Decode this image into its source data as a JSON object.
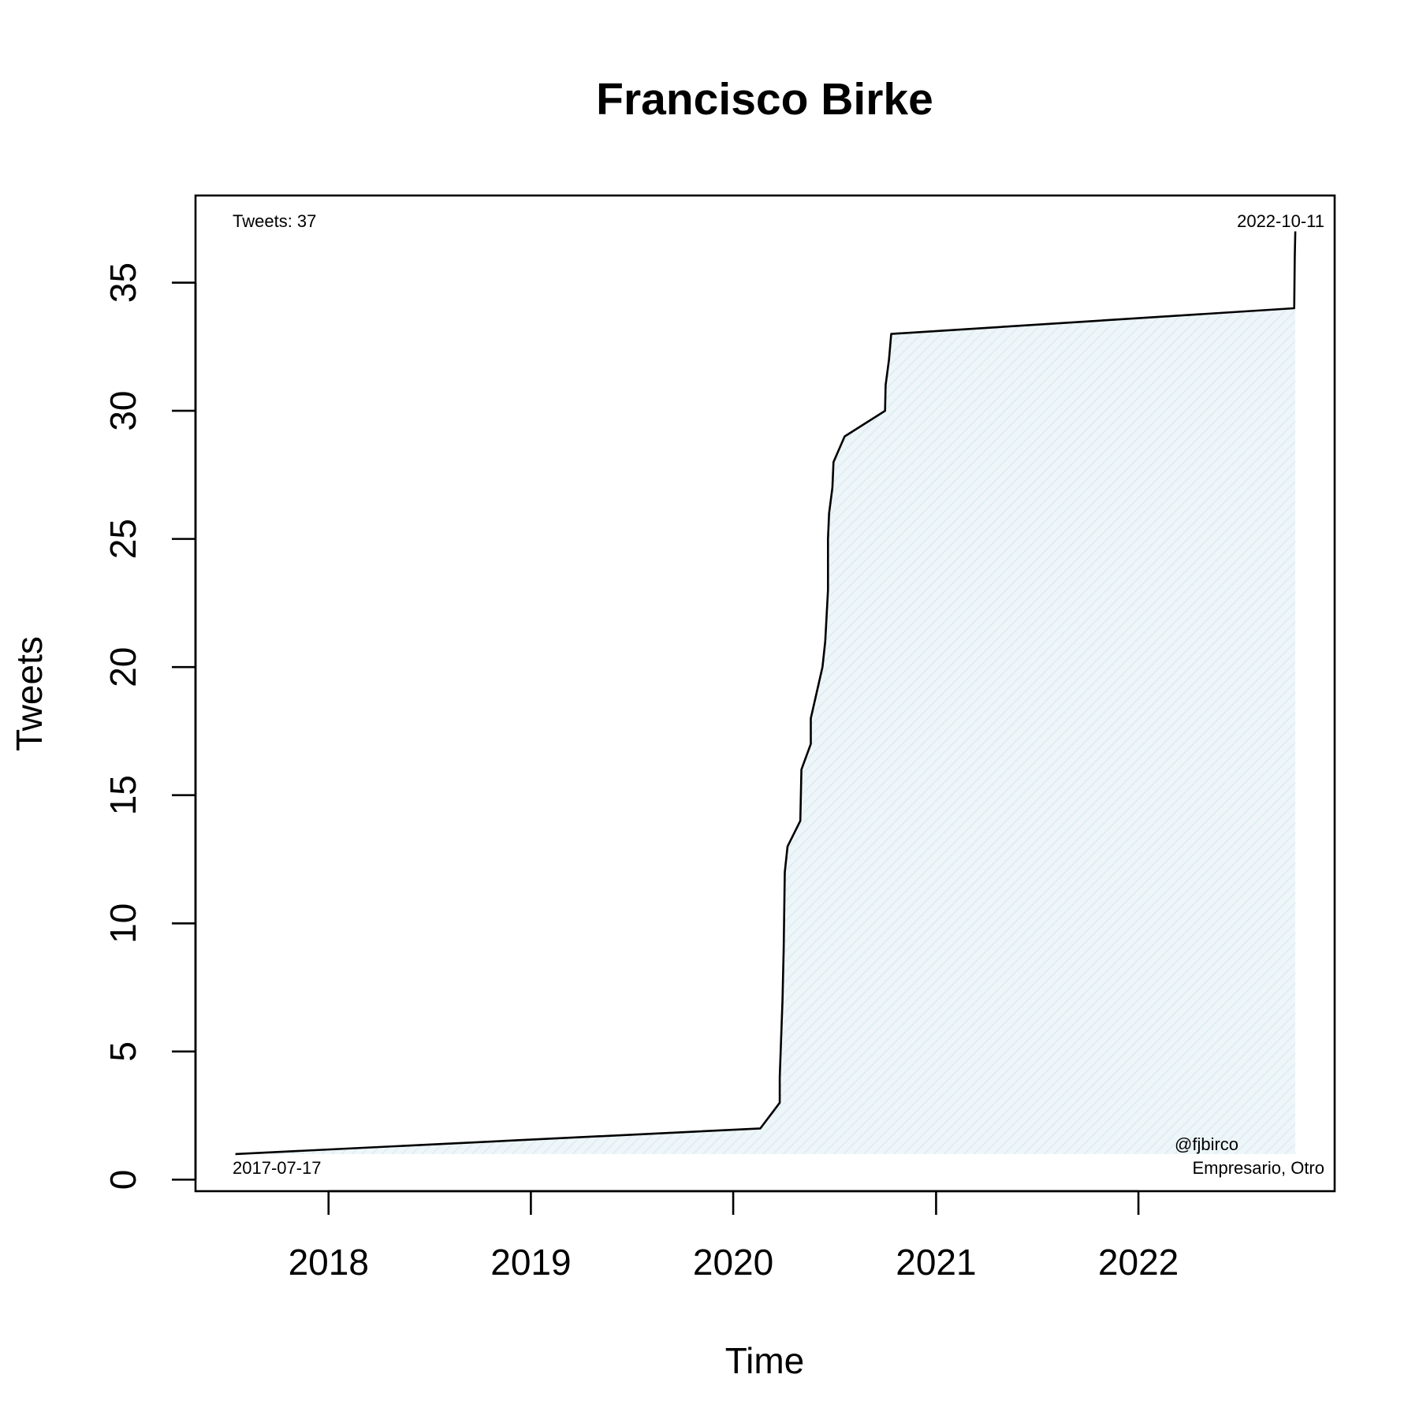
{
  "chart_data": {
    "type": "area",
    "title": "Francisco Birke",
    "xlabel": "Time",
    "ylabel": "Tweets",
    "xlim": [
      "2017-05-06",
      "2022-12-21"
    ],
    "ylim": [
      -0.45,
      38.4
    ],
    "x_ticks": [
      {
        "date": "2018-01-01",
        "label": "2018"
      },
      {
        "date": "2019-01-01",
        "label": "2019"
      },
      {
        "date": "2020-01-01",
        "label": "2020"
      },
      {
        "date": "2021-01-01",
        "label": "2021"
      },
      {
        "date": "2022-01-01",
        "label": "2022"
      }
    ],
    "y_ticks": [
      0,
      5,
      10,
      15,
      20,
      25,
      30,
      35
    ],
    "series": [
      {
        "points": [
          {
            "x": "2017-07-17",
            "y": 1
          },
          {
            "x": "2020-02-19",
            "y": 2
          },
          {
            "x": "2020-03-25",
            "y": 3
          },
          {
            "x": "2020-03-25",
            "y": 4
          },
          {
            "x": "2020-03-30",
            "y": 7
          },
          {
            "x": "2020-04-01",
            "y": 9
          },
          {
            "x": "2020-04-03",
            "y": 12
          },
          {
            "x": "2020-04-08",
            "y": 13
          },
          {
            "x": "2020-05-01",
            "y": 14
          },
          {
            "x": "2020-05-02",
            "y": 15
          },
          {
            "x": "2020-05-03",
            "y": 16
          },
          {
            "x": "2020-05-20",
            "y": 17
          },
          {
            "x": "2020-05-20",
            "y": 18
          },
          {
            "x": "2020-06-10",
            "y": 20
          },
          {
            "x": "2020-06-15",
            "y": 21
          },
          {
            "x": "2020-06-20",
            "y": 23
          },
          {
            "x": "2020-06-20",
            "y": 25
          },
          {
            "x": "2020-06-22",
            "y": 26
          },
          {
            "x": "2020-06-28",
            "y": 27
          },
          {
            "x": "2020-06-30",
            "y": 28
          },
          {
            "x": "2020-07-20",
            "y": 29
          },
          {
            "x": "2020-10-01",
            "y": 30
          },
          {
            "x": "2020-10-02",
            "y": 31
          },
          {
            "x": "2020-10-08",
            "y": 32
          },
          {
            "x": "2020-10-12",
            "y": 33
          },
          {
            "x": "2022-10-09",
            "y": 34
          },
          {
            "x": "2022-10-10",
            "y": 36
          },
          {
            "x": "2022-10-11",
            "y": 37
          }
        ]
      }
    ],
    "fill_color": "#e4f1f6",
    "line_color": "#000000",
    "annotations": {
      "top_left": "Tweets: 37",
      "top_right": "2022-10-11",
      "bottom_left": "2017-07-17",
      "bottom_right_line1": "@fjbirco",
      "bottom_right_line2": "Empresario, Otro"
    }
  }
}
